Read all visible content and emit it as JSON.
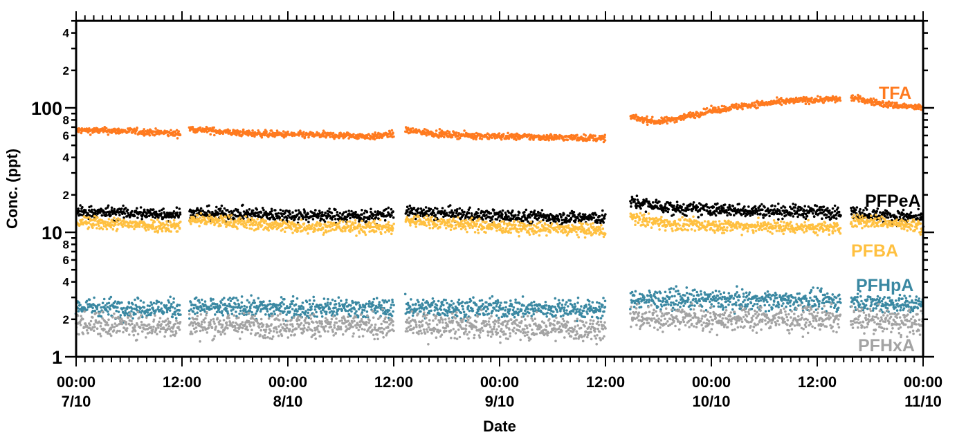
{
  "chart_data": {
    "type": "scatter",
    "title": "",
    "xlabel": "Date",
    "ylabel": "Conc. (ppt)",
    "yscale": "log",
    "ylim": [
      1,
      500
    ],
    "xlim": [
      "7/10 00:00",
      "11/10 00:00"
    ],
    "grid": false,
    "legend": "inline labels at right",
    "y_major_ticks": [
      {
        "v": 1,
        "label": "1"
      },
      {
        "v": 10,
        "label": "10"
      },
      {
        "v": 100,
        "label": "100"
      }
    ],
    "y_minor_labels": [
      {
        "v": 2,
        "label": "2"
      },
      {
        "v": 4,
        "label": "4"
      },
      {
        "v": 6,
        "label": "6"
      },
      {
        "v": 8,
        "label": "8"
      },
      {
        "v": 20,
        "label": "2"
      },
      {
        "v": 40,
        "label": "4"
      },
      {
        "v": 60,
        "label": "6"
      },
      {
        "v": 80,
        "label": "8"
      },
      {
        "v": 200,
        "label": "2"
      },
      {
        "v": 400,
        "label": "4"
      }
    ],
    "x_ticks": [
      {
        "t": "7/10 00:00",
        "time": "00:00",
        "date": "7/10"
      },
      {
        "t": "7/10 12:00",
        "time": "12:00",
        "date": ""
      },
      {
        "t": "8/10 00:00",
        "time": "00:00",
        "date": "8/10"
      },
      {
        "t": "8/10 12:00",
        "time": "12:00",
        "date": ""
      },
      {
        "t": "9/10 00:00",
        "time": "00:00",
        "date": "9/10"
      },
      {
        "t": "9/10 12:00",
        "time": "12:00",
        "date": ""
      },
      {
        "t": "10/10 00:00",
        "time": "00:00",
        "date": "10/10"
      },
      {
        "t": "10/10 12:00",
        "time": "12:00",
        "date": ""
      },
      {
        "t": "11/10 00:00",
        "time": "00:00",
        "date": "11/10"
      }
    ],
    "series": [
      {
        "name": "TFA",
        "color": "#ff7a1f",
        "spread": 0.03,
        "segments": [
          [
            [
              "7/10 00:00",
              66
            ],
            [
              "7/10 06:00",
              65
            ],
            [
              "7/10 11:50",
              62
            ]
          ],
          [
            [
              "7/10 12:50",
              68
            ],
            [
              "7/10 18:00",
              63
            ],
            [
              "8/10 00:00",
              61
            ],
            [
              "8/10 06:00",
              60
            ],
            [
              "8/10 10:00",
              59
            ],
            [
              "8/10 12:00",
              62
            ]
          ],
          [
            [
              "8/10 13:20",
              66
            ],
            [
              "8/10 18:00",
              61
            ],
            [
              "9/10 00:00",
              59
            ],
            [
              "9/10 06:00",
              58
            ],
            [
              "9/10 12:00",
              57
            ]
          ],
          [
            [
              "9/10 14:50",
              84
            ],
            [
              "9/10 18:00",
              77
            ],
            [
              "9/10 20:00",
              82
            ],
            [
              "10/10 00:00",
              95
            ],
            [
              "10/10 04:00",
              105
            ],
            [
              "10/10 10:00",
              115
            ],
            [
              "10/10 14:40",
              118
            ]
          ],
          [
            [
              "10/10 15:50",
              121
            ],
            [
              "10/10 20:00",
              106
            ],
            [
              "11/10 00:00",
              100
            ]
          ]
        ]
      },
      {
        "name": "PFPeA",
        "color": "#000000",
        "spread": 0.06,
        "segments": [
          [
            [
              "7/10 00:00",
              14.5
            ],
            [
              "7/10 11:50",
              14
            ]
          ],
          [
            [
              "7/10 12:50",
              14.3
            ],
            [
              "8/10 00:00",
              13.8
            ],
            [
              "8/10 10:00",
              13.5
            ],
            [
              "8/10 12:00",
              14.5
            ]
          ],
          [
            [
              "8/10 13:20",
              14.5
            ],
            [
              "9/10 00:00",
              13.5
            ],
            [
              "9/10 12:00",
              13
            ]
          ],
          [
            [
              "9/10 14:50",
              17.5
            ],
            [
              "9/10 20:00",
              15.5
            ],
            [
              "10/10 04:00",
              15
            ],
            [
              "10/10 14:40",
              14.5
            ]
          ],
          [
            [
              "10/10 15:50",
              14.5
            ],
            [
              "10/10 20:00",
              13.5
            ],
            [
              "11/10 00:00",
              13
            ]
          ]
        ]
      },
      {
        "name": "PFBA",
        "color": "#ffc040",
        "spread": 0.06,
        "segments": [
          [
            [
              "7/10 00:00",
              12
            ],
            [
              "7/10 11:50",
              11.2
            ]
          ],
          [
            [
              "7/10 12:50",
              12.8
            ],
            [
              "8/10 00:00",
              11.2
            ],
            [
              "8/10 12:00",
              10.9
            ]
          ],
          [
            [
              "8/10 13:20",
              12.5
            ],
            [
              "9/10 00:00",
              11
            ],
            [
              "9/10 12:00",
              10.3
            ]
          ],
          [
            [
              "9/10 14:50",
              13
            ],
            [
              "9/10 20:00",
              11.5
            ],
            [
              "10/10 14:40",
              10.8
            ]
          ],
          [
            [
              "10/10 15:50",
              12.5
            ],
            [
              "10/10 20:00",
              12
            ],
            [
              "11/10 00:00",
              11
            ]
          ]
        ]
      },
      {
        "name": "PFHpA",
        "color": "#3a88a2",
        "spread": 0.09,
        "segments": [
          [
            [
              "7/10 00:00",
              2.5
            ],
            [
              "7/10 11:50",
              2.45
            ]
          ],
          [
            [
              "7/10 12:50",
              2.5
            ],
            [
              "8/10 12:00",
              2.45
            ]
          ],
          [
            [
              "8/10 13:20",
              2.5
            ],
            [
              "9/10 12:00",
              2.4
            ]
          ],
          [
            [
              "9/10 14:50",
              2.9
            ],
            [
              "10/10 14:40",
              2.8
            ]
          ],
          [
            [
              "10/10 15:50",
              2.8
            ],
            [
              "11/10 00:00",
              2.6
            ]
          ]
        ]
      },
      {
        "name": "PFHxA",
        "color": "#a3a3a3",
        "spread": 0.11,
        "segments": [
          [
            [
              "7/10 00:00",
              1.85
            ],
            [
              "7/10 11:50",
              1.75
            ]
          ],
          [
            [
              "7/10 12:50",
              1.8
            ],
            [
              "8/10 12:00",
              1.75
            ]
          ],
          [
            [
              "8/10 13:20",
              1.8
            ],
            [
              "9/10 12:00",
              1.65
            ]
          ],
          [
            [
              "9/10 14:50",
              2.05
            ],
            [
              "10/10 14:40",
              2.0
            ]
          ],
          [
            [
              "10/10 15:50",
              2.0
            ],
            [
              "11/10 00:00",
              1.85
            ]
          ]
        ]
      }
    ]
  }
}
